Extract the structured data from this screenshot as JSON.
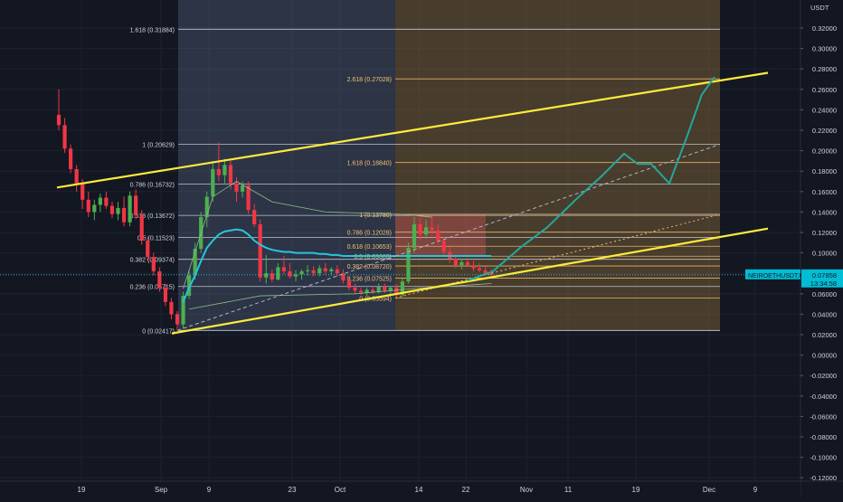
{
  "price_axis": {
    "currency": "USDT",
    "ticks": [
      "0.32000",
      "0.30000",
      "0.28000",
      "0.26000",
      "0.24000",
      "0.22000",
      "0.20000",
      "0.18000",
      "0.16000",
      "0.14000",
      "0.12000",
      "0.10000",
      "0.08000",
      "0.06000",
      "0.04000",
      "0.02000",
      "0.00000",
      "-0.02000",
      "-0.04000",
      "-0.06000",
      "-0.08000",
      "-0.10000",
      "-0.12000"
    ]
  },
  "time_axis": {
    "ticks": [
      "19",
      "Sep",
      "9",
      "23",
      "Oct",
      "14",
      "22",
      "Nov",
      "11",
      "19",
      "Dec",
      "9"
    ]
  },
  "symbol_badge": {
    "symbol": "NEIROETHUSDT.P",
    "price": "0.07858",
    "countdown": "13:34:58"
  },
  "colors": {
    "background": "#131722",
    "bull": "#4caf50",
    "bear": "#f23645",
    "channel": "#ffeb3b",
    "ma": "#26c6da",
    "projection": "#26a69a",
    "badge": "#00bcd4"
  },
  "chart_data": {
    "type": "candlestick",
    "symbol": "NEIROETHUSDT.P",
    "y_range": [
      -0.125,
      0.335
    ],
    "fib_retracement_1": [
      {
        "ratio": "1.618",
        "price": 0.31884
      },
      {
        "ratio": "1",
        "price": 0.20629
      },
      {
        "ratio": "0.786",
        "price": 0.16732
      },
      {
        "ratio": "0.618",
        "price": 0.13672
      },
      {
        "ratio": "0.5",
        "price": 0.11523
      },
      {
        "ratio": "0.382",
        "price": 0.09374
      },
      {
        "ratio": "0.236",
        "price": 0.06715
      },
      {
        "ratio": "0",
        "price": 0.02417
      }
    ],
    "fib_retracement_2": [
      {
        "ratio": "2.618",
        "price": 0.27028
      },
      {
        "ratio": "1.618",
        "price": 0.1884
      },
      {
        "ratio": "1",
        "price": 0.1378
      },
      {
        "ratio": "0.786",
        "price": 0.12028
      },
      {
        "ratio": "0.618",
        "price": 0.10653
      },
      {
        "ratio": "0.5",
        "price": 0.0968
      },
      {
        "ratio": "0.382",
        "price": 0.0872
      },
      {
        "ratio": "0.236",
        "price": 0.07525
      },
      {
        "ratio": "0",
        "price": 0.05594
      }
    ],
    "fib2_labels": [
      {
        "ratio": "2.618",
        "price": "0.27028"
      },
      {
        "ratio": "1.618",
        "price": "0.18840"
      },
      {
        "ratio": "1",
        "price": "0.13780"
      },
      {
        "ratio": "0.786",
        "price": "0.12028"
      },
      {
        "ratio": "0.618",
        "price": "0.10653"
      },
      {
        "ratio": "0.5",
        "price": "0.09680"
      },
      {
        "ratio": "0.382",
        "price": "0.08720"
      },
      {
        "ratio": "0.236",
        "price": "0.07525"
      },
      {
        "ratio": "0",
        "price": "0.05594"
      }
    ],
    "candles": [
      {
        "o": 0.235,
        "h": 0.26,
        "l": 0.22,
        "c": 0.225
      },
      {
        "o": 0.225,
        "h": 0.232,
        "l": 0.198,
        "c": 0.202
      },
      {
        "o": 0.202,
        "h": 0.206,
        "l": 0.178,
        "c": 0.182
      },
      {
        "o": 0.182,
        "h": 0.186,
        "l": 0.16,
        "c": 0.168
      },
      {
        "o": 0.168,
        "h": 0.172,
        "l": 0.143,
        "c": 0.152
      },
      {
        "o": 0.152,
        "h": 0.16,
        "l": 0.135,
        "c": 0.14
      },
      {
        "o": 0.14,
        "h": 0.152,
        "l": 0.132,
        "c": 0.147
      },
      {
        "o": 0.147,
        "h": 0.158,
        "l": 0.14,
        "c": 0.154
      },
      {
        "o": 0.154,
        "h": 0.16,
        "l": 0.143,
        "c": 0.146
      },
      {
        "o": 0.146,
        "h": 0.15,
        "l": 0.134,
        "c": 0.138
      },
      {
        "o": 0.138,
        "h": 0.15,
        "l": 0.132,
        "c": 0.144
      },
      {
        "o": 0.144,
        "h": 0.155,
        "l": 0.126,
        "c": 0.13
      },
      {
        "o": 0.13,
        "h": 0.16,
        "l": 0.126,
        "c": 0.156
      },
      {
        "o": 0.156,
        "h": 0.162,
        "l": 0.133,
        "c": 0.137
      },
      {
        "o": 0.137,
        "h": 0.142,
        "l": 0.108,
        "c": 0.112
      },
      {
        "o": 0.112,
        "h": 0.116,
        "l": 0.092,
        "c": 0.096
      },
      {
        "o": 0.096,
        "h": 0.1,
        "l": 0.078,
        "c": 0.082
      },
      {
        "o": 0.082,
        "h": 0.086,
        "l": 0.062,
        "c": 0.066
      },
      {
        "o": 0.066,
        "h": 0.07,
        "l": 0.048,
        "c": 0.052
      },
      {
        "o": 0.052,
        "h": 0.056,
        "l": 0.035,
        "c": 0.04
      },
      {
        "o": 0.04,
        "h": 0.043,
        "l": 0.024,
        "c": 0.03
      },
      {
        "o": 0.03,
        "h": 0.062,
        "l": 0.026,
        "c": 0.058
      },
      {
        "o": 0.058,
        "h": 0.082,
        "l": 0.055,
        "c": 0.078
      },
      {
        "o": 0.078,
        "h": 0.11,
        "l": 0.074,
        "c": 0.104
      },
      {
        "o": 0.104,
        "h": 0.14,
        "l": 0.1,
        "c": 0.135
      },
      {
        "o": 0.135,
        "h": 0.16,
        "l": 0.125,
        "c": 0.155
      },
      {
        "o": 0.155,
        "h": 0.19,
        "l": 0.15,
        "c": 0.182
      },
      {
        "o": 0.182,
        "h": 0.208,
        "l": 0.17,
        "c": 0.176
      },
      {
        "o": 0.176,
        "h": 0.192,
        "l": 0.168,
        "c": 0.186
      },
      {
        "o": 0.186,
        "h": 0.19,
        "l": 0.162,
        "c": 0.168
      },
      {
        "o": 0.168,
        "h": 0.174,
        "l": 0.15,
        "c": 0.16
      },
      {
        "o": 0.16,
        "h": 0.17,
        "l": 0.154,
        "c": 0.166
      },
      {
        "o": 0.166,
        "h": 0.17,
        "l": 0.138,
        "c": 0.142
      },
      {
        "o": 0.142,
        "h": 0.148,
        "l": 0.125,
        "c": 0.128
      },
      {
        "o": 0.128,
        "h": 0.133,
        "l": 0.072,
        "c": 0.076
      },
      {
        "o": 0.076,
        "h": 0.098,
        "l": 0.07,
        "c": 0.08
      },
      {
        "o": 0.08,
        "h": 0.084,
        "l": 0.071,
        "c": 0.074
      },
      {
        "o": 0.074,
        "h": 0.09,
        "l": 0.073,
        "c": 0.086
      },
      {
        "o": 0.086,
        "h": 0.097,
        "l": 0.079,
        "c": 0.082
      },
      {
        "o": 0.082,
        "h": 0.09,
        "l": 0.075,
        "c": 0.077
      },
      {
        "o": 0.077,
        "h": 0.083,
        "l": 0.072,
        "c": 0.079
      },
      {
        "o": 0.079,
        "h": 0.084,
        "l": 0.074,
        "c": 0.082
      },
      {
        "o": 0.082,
        "h": 0.088,
        "l": 0.078,
        "c": 0.083
      },
      {
        "o": 0.083,
        "h": 0.087,
        "l": 0.077,
        "c": 0.08
      },
      {
        "o": 0.08,
        "h": 0.088,
        "l": 0.077,
        "c": 0.085
      },
      {
        "o": 0.085,
        "h": 0.09,
        "l": 0.079,
        "c": 0.082
      },
      {
        "o": 0.082,
        "h": 0.086,
        "l": 0.078,
        "c": 0.084
      },
      {
        "o": 0.084,
        "h": 0.088,
        "l": 0.077,
        "c": 0.08
      },
      {
        "o": 0.08,
        "h": 0.084,
        "l": 0.07,
        "c": 0.073
      },
      {
        "o": 0.073,
        "h": 0.076,
        "l": 0.063,
        "c": 0.066
      },
      {
        "o": 0.066,
        "h": 0.07,
        "l": 0.06,
        "c": 0.063
      },
      {
        "o": 0.063,
        "h": 0.066,
        "l": 0.059,
        "c": 0.061
      },
      {
        "o": 0.061,
        "h": 0.066,
        "l": 0.058,
        "c": 0.064
      },
      {
        "o": 0.064,
        "h": 0.068,
        "l": 0.06,
        "c": 0.062
      },
      {
        "o": 0.062,
        "h": 0.07,
        "l": 0.06,
        "c": 0.067
      },
      {
        "o": 0.067,
        "h": 0.07,
        "l": 0.061,
        "c": 0.063
      },
      {
        "o": 0.063,
        "h": 0.068,
        "l": 0.06,
        "c": 0.066
      },
      {
        "o": 0.066,
        "h": 0.069,
        "l": 0.056,
        "c": 0.059
      },
      {
        "o": 0.059,
        "h": 0.075,
        "l": 0.057,
        "c": 0.072
      },
      {
        "o": 0.072,
        "h": 0.11,
        "l": 0.07,
        "c": 0.105
      },
      {
        "o": 0.105,
        "h": 0.135,
        "l": 0.1,
        "c": 0.128
      },
      {
        "o": 0.128,
        "h": 0.134,
        "l": 0.112,
        "c": 0.118
      },
      {
        "o": 0.118,
        "h": 0.132,
        "l": 0.114,
        "c": 0.125
      },
      {
        "o": 0.125,
        "h": 0.136,
        "l": 0.118,
        "c": 0.122
      },
      {
        "o": 0.122,
        "h": 0.128,
        "l": 0.108,
        "c": 0.112
      },
      {
        "o": 0.112,
        "h": 0.116,
        "l": 0.098,
        "c": 0.101
      },
      {
        "o": 0.101,
        "h": 0.106,
        "l": 0.09,
        "c": 0.094
      },
      {
        "o": 0.094,
        "h": 0.099,
        "l": 0.085,
        "c": 0.088
      },
      {
        "o": 0.088,
        "h": 0.094,
        "l": 0.084,
        "c": 0.091
      },
      {
        "o": 0.091,
        "h": 0.095,
        "l": 0.086,
        "c": 0.088
      },
      {
        "o": 0.088,
        "h": 0.092,
        "l": 0.082,
        "c": 0.085
      },
      {
        "o": 0.085,
        "h": 0.09,
        "l": 0.081,
        "c": 0.083
      },
      {
        "o": 0.083,
        "h": 0.087,
        "l": 0.078,
        "c": 0.08
      },
      {
        "o": 0.08,
        "h": 0.084,
        "l": 0.076,
        "c": 0.07858
      }
    ],
    "ma_fast": [
      0.0,
      0.0,
      0.0,
      0.0,
      0.0,
      0.0,
      0.0,
      0.0,
      0.0,
      0.0,
      0.0,
      0.0,
      0.0,
      0.0,
      0.0,
      0.0,
      0.0,
      0.0,
      0.0,
      0.0,
      0.0,
      0.052,
      0.066,
      0.078,
      0.092,
      0.105,
      0.112,
      0.118,
      0.121,
      0.122,
      0.123,
      0.122,
      0.118,
      0.112,
      0.108,
      0.105,
      0.103,
      0.102,
      0.101,
      0.101,
      0.1,
      0.1,
      0.1,
      0.1,
      0.099,
      0.099,
      0.098,
      0.098,
      0.097,
      0.097,
      0.097,
      0.097,
      0.097,
      0.097,
      0.097,
      0.097,
      0.097,
      0.097,
      0.097,
      0.097,
      0.097,
      0.097,
      0.097,
      0.097,
      0.097,
      0.097,
      0.097,
      0.097,
      0.097,
      0.097,
      0.097,
      0.097,
      0.097,
      0.097
    ]
  }
}
